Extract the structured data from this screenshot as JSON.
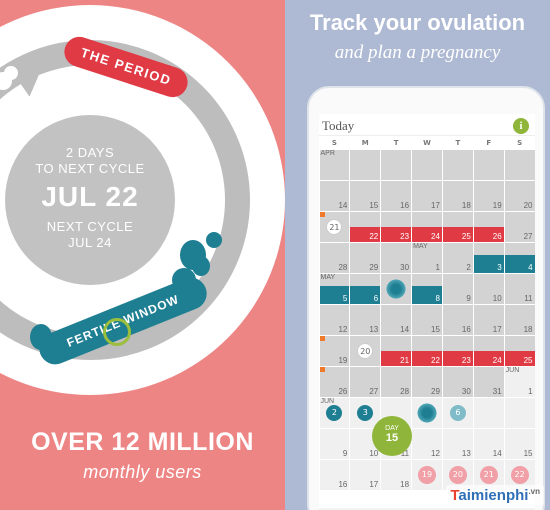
{
  "left": {
    "period_label": "THE PERIOD",
    "countdown_line1": "2 DAYS",
    "countdown_line2": "TO NEXT CYCLE",
    "countdown_date": "JUL 22",
    "next_cycle_label": "NEXT CYCLE",
    "next_cycle_date": "JUL 24",
    "fertile_label": "FERTILE WINDOW",
    "headline": "OVER 12 MILLION",
    "subheadline": "monthly users",
    "colors": {
      "background": "#ee8585",
      "period": "#e03a45",
      "fertile": "#1f7f92",
      "ring": "#bdbdbd"
    }
  },
  "right": {
    "title": "Track your ovulation",
    "subtitle": "and plan a pregnancy",
    "background": "#aeb9d3"
  },
  "app": {
    "header_title": "Today",
    "info_icon": "info-icon",
    "weekdays": [
      "S",
      "M",
      "T",
      "W",
      "T",
      "F",
      "S"
    ],
    "day_bubble": {
      "label": "DAY",
      "number": "15"
    },
    "rows": [
      [
        {
          "n": "",
          "m": "APR"
        },
        {
          "n": "",
          "m": ""
        },
        {
          "n": "",
          "m": ""
        },
        {
          "n": "",
          "m": ""
        },
        {
          "n": "",
          "m": ""
        },
        {
          "n": "",
          "m": ""
        },
        {
          "n": "",
          "m": ""
        }
      ],
      [
        {
          "n": "14"
        },
        {
          "n": "15"
        },
        {
          "n": "16"
        },
        {
          "n": "17"
        },
        {
          "n": "18"
        },
        {
          "n": "19"
        },
        {
          "n": "20"
        }
      ],
      [
        {
          "n": "21",
          "t": "cloud"
        },
        {
          "n": "22",
          "t": "period"
        },
        {
          "n": "23",
          "t": "period"
        },
        {
          "n": "24",
          "t": "period"
        },
        {
          "n": "25",
          "t": "period"
        },
        {
          "n": "26",
          "t": "period"
        },
        {
          "n": "27"
        }
      ],
      [
        {
          "n": "28"
        },
        {
          "n": "29"
        },
        {
          "n": "30"
        },
        {
          "n": "1",
          "m": "MAY"
        },
        {
          "n": "2"
        },
        {
          "n": "3",
          "t": "fertile"
        },
        {
          "n": "4",
          "t": "fertile"
        }
      ],
      [
        {
          "n": "5",
          "m": "MAY",
          "t": "fertile"
        },
        {
          "n": "6",
          "t": "fertile"
        },
        {
          "n": "7",
          "t": "burst"
        },
        {
          "n": "8",
          "t": "fertile"
        },
        {
          "n": "9"
        },
        {
          "n": "10"
        },
        {
          "n": "11"
        }
      ],
      [
        {
          "n": "12"
        },
        {
          "n": "13"
        },
        {
          "n": "14"
        },
        {
          "n": "15"
        },
        {
          "n": "16"
        },
        {
          "n": "17"
        },
        {
          "n": "18"
        }
      ],
      [
        {
          "n": "19"
        },
        {
          "n": "20",
          "t": "cloud"
        },
        {
          "n": "21",
          "t": "period"
        },
        {
          "n": "22",
          "t": "period"
        },
        {
          "n": "23",
          "t": "period"
        },
        {
          "n": "24",
          "t": "period"
        },
        {
          "n": "25",
          "t": "period"
        }
      ],
      [
        {
          "n": "26"
        },
        {
          "n": "27"
        },
        {
          "n": "28"
        },
        {
          "n": "29"
        },
        {
          "n": "30"
        },
        {
          "n": "31"
        },
        {
          "n": "1",
          "m": "JUN",
          "t": "future"
        }
      ],
      [
        {
          "n": "2",
          "m": "JUN",
          "t": "fcirc"
        },
        {
          "n": "3",
          "t": "fcirc"
        },
        {
          "n": "",
          "t": "future"
        },
        {
          "n": "",
          "t": "fburst"
        },
        {
          "n": "6",
          "t": "flight"
        },
        {
          "n": "",
          "t": "future"
        },
        {
          "n": "",
          "t": "future"
        }
      ],
      [
        {
          "n": "9",
          "t": "future"
        },
        {
          "n": "10",
          "t": "future"
        },
        {
          "n": "11",
          "t": "future"
        },
        {
          "n": "12",
          "t": "future"
        },
        {
          "n": "13",
          "t": "future"
        },
        {
          "n": "14",
          "t": "future"
        },
        {
          "n": "15",
          "t": "future"
        }
      ],
      [
        {
          "n": "16",
          "t": "future"
        },
        {
          "n": "17",
          "t": "future"
        },
        {
          "n": "18",
          "t": "future"
        },
        {
          "n": "19",
          "t": "fpink"
        },
        {
          "n": "20",
          "t": "fpink"
        },
        {
          "n": "21",
          "t": "fpink"
        },
        {
          "n": "22",
          "t": "fpink"
        }
      ]
    ]
  },
  "tabbar": {
    "items": [
      "history-icon",
      "calendar-icon",
      "add-button",
      "insights-icon",
      "settings-icon"
    ]
  },
  "watermark": {
    "brand": "aimienphi",
    "t": "T",
    "suffix": ".vn"
  }
}
